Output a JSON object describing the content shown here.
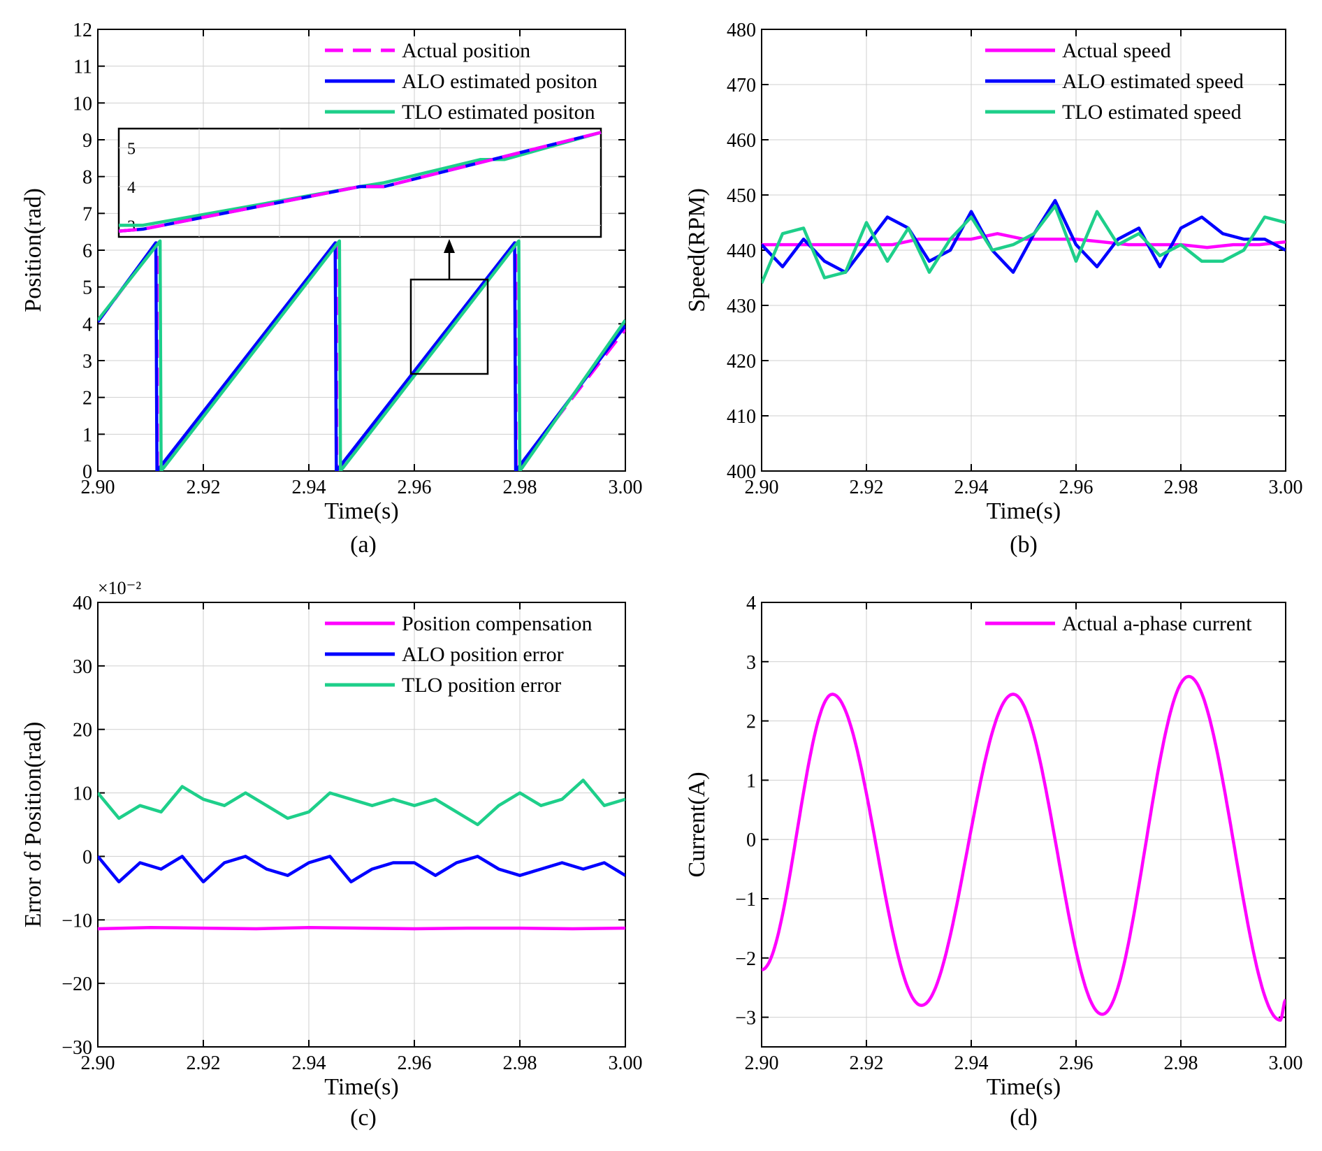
{
  "chart_data": [
    {
      "panel": "(a)",
      "type": "line",
      "xlabel": "Time(s)",
      "ylabel": "Position(rad)",
      "xlim": [
        2.9,
        3.0
      ],
      "ylim": [
        0,
        12
      ],
      "xticks": [
        "2.90",
        "2.92",
        "2.94",
        "2.96",
        "2.98",
        "3.00"
      ],
      "yticks": [
        "0",
        "1",
        "2",
        "3",
        "4",
        "5",
        "6",
        "7",
        "8",
        "9",
        "10",
        "11",
        "12"
      ],
      "grid": true,
      "legend_position": "top-right",
      "series": [
        {
          "name": "Actual position",
          "color": "#ff00ff",
          "dash": true,
          "x": [
            2.9,
            2.9112,
            2.9113,
            2.9452,
            2.9453,
            2.9792,
            2.9793,
            3.0
          ],
          "y": [
            4.05,
            6.2,
            0.0,
            6.2,
            0.0,
            6.2,
            0.0,
            3.85
          ]
        },
        {
          "name": "ALO estimated positon",
          "color": "#0000ff",
          "dash": false,
          "x": [
            2.9,
            2.911,
            2.9112,
            2.945,
            2.9452,
            2.979,
            2.9792,
            3.0
          ],
          "y": [
            4.05,
            6.2,
            0.0,
            6.2,
            0.0,
            6.2,
            0.0,
            3.95
          ]
        },
        {
          "name": "TLO estimated positon",
          "color": "#1ecf8a",
          "dash": false,
          "x": [
            2.9,
            2.9118,
            2.912,
            2.9458,
            2.946,
            2.9798,
            2.98,
            3.0
          ],
          "y": [
            4.1,
            6.25,
            0.0,
            6.25,
            0.0,
            6.25,
            0.0,
            4.1
          ]
        }
      ],
      "inset": {
        "yticks": [
          "3",
          "4",
          "5"
        ],
        "ylim": [
          2.7,
          5.5
        ],
        "series": [
          {
            "name": "Actual position",
            "x": [
              0,
              0.05,
              0.5,
              0.55,
              1.0
            ],
            "y": [
              2.85,
              2.9,
              4.0,
              4.0,
              5.4
            ]
          },
          {
            "name": "ALO estimated positon",
            "x": [
              0,
              0.05,
              0.5,
              0.55,
              1.0
            ],
            "y": [
              2.85,
              2.9,
              4.0,
              4.0,
              5.4
            ]
          },
          {
            "name": "TLO estimated positon",
            "x": [
              0,
              0.05,
              0.5,
              0.55,
              0.75,
              0.8,
              1.0
            ],
            "y": [
              3.0,
              3.0,
              4.0,
              4.1,
              4.7,
              4.7,
              5.4
            ]
          }
        ]
      }
    },
    {
      "panel": "(b)",
      "type": "line",
      "xlabel": "Time(s)",
      "ylabel": "Speed(RPM)",
      "xlim": [
        2.9,
        3.0
      ],
      "ylim": [
        400,
        480
      ],
      "xticks": [
        "2.90",
        "2.92",
        "2.94",
        "2.96",
        "2.98",
        "3.00"
      ],
      "yticks": [
        "400",
        "410",
        "420",
        "430",
        "440",
        "450",
        "460",
        "470",
        "480"
      ],
      "grid": true,
      "legend_position": "top-right",
      "series": [
        {
          "name": "Actual speed",
          "color": "#ff00ff",
          "x": [
            2.9,
            2.905,
            2.91,
            2.915,
            2.92,
            2.925,
            2.93,
            2.935,
            2.94,
            2.945,
            2.95,
            2.955,
            2.96,
            2.965,
            2.97,
            2.975,
            2.98,
            2.985,
            2.99,
            2.995,
            3.0
          ],
          "y": [
            441,
            441,
            441,
            441,
            441,
            441,
            442,
            442,
            442,
            443,
            442,
            442,
            442,
            441.5,
            441,
            441,
            441,
            440.5,
            441,
            441,
            441.5
          ]
        },
        {
          "name": "ALO estimated speed",
          "color": "#0000ff",
          "x": [
            2.9,
            2.904,
            2.908,
            2.912,
            2.916,
            2.92,
            2.924,
            2.928,
            2.932,
            2.936,
            2.94,
            2.944,
            2.948,
            2.952,
            2.956,
            2.96,
            2.964,
            2.968,
            2.972,
            2.976,
            2.98,
            2.984,
            2.988,
            2.992,
            2.996,
            3.0
          ],
          "y": [
            441,
            437,
            442,
            438,
            436,
            441,
            446,
            444,
            438,
            440,
            447,
            440,
            436,
            443,
            449,
            441,
            437,
            442,
            444,
            437,
            444,
            446,
            443,
            442,
            442,
            440
          ]
        },
        {
          "name": "TLO estimated speed",
          "color": "#1ecf8a",
          "x": [
            2.9,
            2.904,
            2.908,
            2.912,
            2.916,
            2.92,
            2.924,
            2.928,
            2.932,
            2.936,
            2.94,
            2.944,
            2.948,
            2.952,
            2.956,
            2.96,
            2.964,
            2.968,
            2.972,
            2.976,
            2.98,
            2.984,
            2.988,
            2.992,
            2.996,
            3.0
          ],
          "y": [
            434,
            443,
            444,
            435,
            436,
            445,
            438,
            444,
            436,
            442,
            446,
            440,
            441,
            443,
            448,
            438,
            447,
            441,
            443,
            439,
            441,
            438,
            438,
            440,
            446,
            445
          ]
        }
      ]
    },
    {
      "panel": "(c)",
      "type": "line",
      "xlabel": "Time(s)",
      "ylabel": "Error of Position(rad)",
      "scale_label": "×10⁻²",
      "xlim": [
        2.9,
        3.0
      ],
      "ylim": [
        -30,
        40
      ],
      "xticks": [
        "2.90",
        "2.92",
        "2.94",
        "2.96",
        "2.98",
        "3.00"
      ],
      "yticks": [
        "−30",
        "−20",
        "−10",
        "0",
        "10",
        "20",
        "30",
        "40"
      ],
      "grid": true,
      "legend_position": "top-right",
      "series": [
        {
          "name": "Position compensation",
          "color": "#ff00ff",
          "x": [
            2.9,
            2.91,
            2.92,
            2.93,
            2.94,
            2.95,
            2.96,
            2.97,
            2.98,
            2.99,
            3.0
          ],
          "y": [
            -11.4,
            -11.2,
            -11.3,
            -11.4,
            -11.2,
            -11.3,
            -11.4,
            -11.3,
            -11.3,
            -11.4,
            -11.3
          ]
        },
        {
          "name": "ALO position error",
          "color": "#0000ff",
          "x": [
            2.9,
            2.904,
            2.908,
            2.912,
            2.916,
            2.92,
            2.924,
            2.928,
            2.932,
            2.936,
            2.94,
            2.944,
            2.948,
            2.952,
            2.956,
            2.96,
            2.964,
            2.968,
            2.972,
            2.976,
            2.98,
            2.984,
            2.988,
            2.992,
            2.996,
            3.0
          ],
          "y": [
            0,
            -4,
            -1,
            -2,
            0,
            -4,
            -1,
            0,
            -2,
            -3,
            -1,
            0,
            -4,
            -2,
            -1,
            -1,
            -3,
            -1,
            0,
            -2,
            -3,
            -2,
            -1,
            -2,
            -1,
            -3
          ]
        },
        {
          "name": "TLO position error",
          "color": "#1ecf8a",
          "x": [
            2.9,
            2.904,
            2.908,
            2.912,
            2.916,
            2.92,
            2.924,
            2.928,
            2.932,
            2.936,
            2.94,
            2.944,
            2.948,
            2.952,
            2.956,
            2.96,
            2.964,
            2.968,
            2.972,
            2.976,
            2.98,
            2.984,
            2.988,
            2.992,
            2.996,
            3.0
          ],
          "y": [
            10,
            6,
            8,
            7,
            11,
            9,
            8,
            10,
            8,
            6,
            7,
            10,
            9,
            8,
            9,
            8,
            9,
            7,
            5,
            8,
            10,
            8,
            9,
            12,
            8,
            9
          ]
        }
      ]
    },
    {
      "panel": "(d)",
      "type": "line",
      "xlabel": "Time(s)",
      "ylabel": "Current(A)",
      "xlim": [
        2.9,
        3.0
      ],
      "ylim": [
        -3.5,
        4
      ],
      "xticks": [
        "2.90",
        "2.92",
        "2.94",
        "2.96",
        "2.98",
        "3.00"
      ],
      "yticks": [
        "−3",
        "−2",
        "−1",
        "0",
        "1",
        "2",
        "3",
        "4"
      ],
      "grid": true,
      "legend_position": "top-right",
      "series": [
        {
          "name": "Actual a-phase current",
          "color": "#ff00ff",
          "amplitude_peaks": [
            2.45,
            2.45,
            2.75
          ],
          "amplitude_troughs": [
            -2.8,
            -2.95,
            -3.05
          ],
          "period": 0.034,
          "x": [
            2.9,
            2.9135,
            2.9305,
            2.948,
            2.965,
            2.9815,
            2.999,
            3.0
          ],
          "y": [
            -2.2,
            2.45,
            -2.8,
            2.45,
            -2.95,
            2.75,
            -3.05,
            -2.7
          ]
        }
      ]
    }
  ]
}
